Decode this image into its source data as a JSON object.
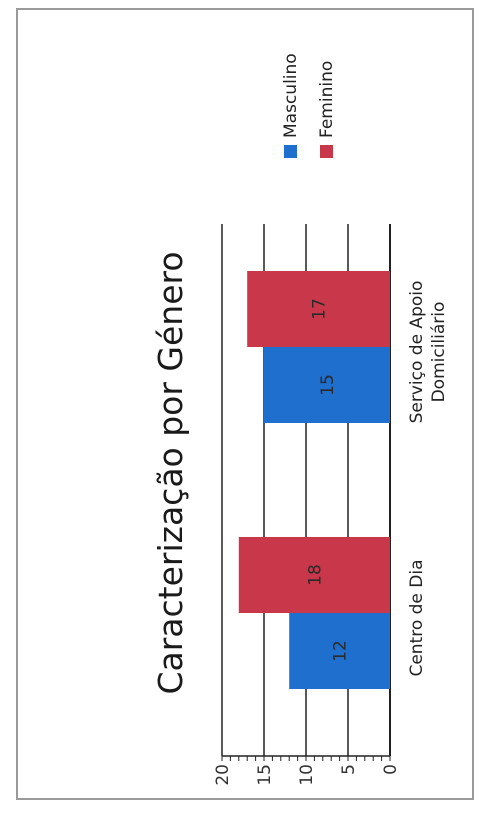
{
  "chart_data": {
    "type": "bar",
    "orientation": "vertical",
    "title": "Caracterização por Género",
    "categories": [
      "Centro de Dia",
      "Serviço de Apoio Domiciliário"
    ],
    "series": [
      {
        "name": "Masculino",
        "values": [
          12,
          15
        ],
        "color": "#1f6fcf"
      },
      {
        "name": "Feminino",
        "values": [
          18,
          17
        ],
        "color": "#c8384a"
      }
    ],
    "ylim": [
      0,
      20
    ],
    "yticks": [
      "0",
      "5",
      "10",
      "15",
      "20"
    ],
    "grid": true,
    "legend": "top-right",
    "data_labels": true
  }
}
